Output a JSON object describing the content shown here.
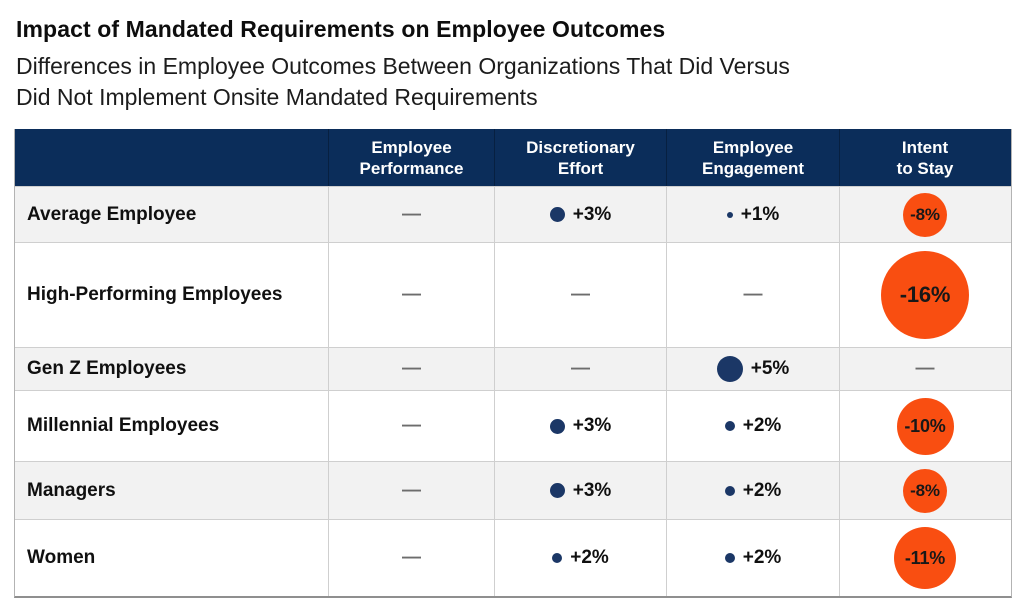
{
  "page": {
    "title": "Impact of Mandated Requirements on Employee Outcomes",
    "subtitle_line1": "Differences in Employee Outcomes Between Organizations That Did Versus",
    "subtitle_line2": "Did Not Implement Onsite Mandated Requirements"
  },
  "colors": {
    "header_bg": "#0b2d5a",
    "navy_bubble": "#1b3766",
    "orange_bubble": "#f94e11",
    "row_alt_bg": "#f2f2f2",
    "dash_gray": "#6d6d6d"
  },
  "table": {
    "dash": "—",
    "header": {
      "columns": [
        {
          "line1": "Employee",
          "line2": "Performance"
        },
        {
          "line1": "Discretionary",
          "line2": "Effort"
        },
        {
          "line1": "Employee",
          "line2": "Engagement"
        },
        {
          "line1": "Intent",
          "line2": "to Stay"
        }
      ]
    },
    "rows": [
      {
        "label": "Average Employee",
        "cells": [
          {
            "type": "dash"
          },
          {
            "type": "bubble",
            "color": "navy",
            "size": 15,
            "label": "+3%"
          },
          {
            "type": "bubble",
            "color": "navy",
            "size": 6,
            "label": "+1%"
          },
          {
            "type": "bubble-inside",
            "color": "orange",
            "size": 44,
            "font": 17,
            "label": "-8%"
          }
        ]
      },
      {
        "label": "High-Performing Employees",
        "cells": [
          {
            "type": "dash"
          },
          {
            "type": "dash"
          },
          {
            "type": "dash"
          },
          {
            "type": "bubble-inside",
            "color": "orange",
            "size": 88,
            "font": 22,
            "label": "-16%"
          }
        ]
      },
      {
        "label": "Gen Z Employees",
        "cells": [
          {
            "type": "dash"
          },
          {
            "type": "dash"
          },
          {
            "type": "bubble",
            "color": "navy",
            "size": 26,
            "label": "+5%"
          },
          {
            "type": "dash"
          }
        ]
      },
      {
        "label": "Millennial Employees",
        "cells": [
          {
            "type": "dash"
          },
          {
            "type": "bubble",
            "color": "navy",
            "size": 15,
            "label": "+3%"
          },
          {
            "type": "bubble",
            "color": "navy",
            "size": 10,
            "label": "+2%"
          },
          {
            "type": "bubble-inside",
            "color": "orange",
            "size": 57,
            "font": 18,
            "label": "-10%"
          }
        ]
      },
      {
        "label": "Managers",
        "cells": [
          {
            "type": "dash"
          },
          {
            "type": "bubble",
            "color": "navy",
            "size": 15,
            "label": "+3%"
          },
          {
            "type": "bubble",
            "color": "navy",
            "size": 10,
            "label": "+2%"
          },
          {
            "type": "bubble-inside",
            "color": "orange",
            "size": 44,
            "font": 17,
            "label": "-8%"
          }
        ]
      },
      {
        "label": "Women",
        "cells": [
          {
            "type": "dash"
          },
          {
            "type": "bubble",
            "color": "navy",
            "size": 10,
            "label": "+2%"
          },
          {
            "type": "bubble",
            "color": "navy",
            "size": 10,
            "label": "+2%"
          },
          {
            "type": "bubble-inside",
            "color": "orange",
            "size": 62,
            "font": 18,
            "label": "-11%"
          }
        ]
      }
    ]
  },
  "chart_data": {
    "type": "table",
    "title": "Impact of Mandated Requirements on Employee Outcomes",
    "subtitle": "Differences in Employee Outcomes Between Organizations That Did Versus Did Not Implement Onsite Mandated Requirements",
    "columns": [
      "Employee Performance",
      "Discretionary Effort",
      "Employee Engagement",
      "Intent to Stay"
    ],
    "rows": [
      {
        "label": "Average Employee",
        "values_pct": [
          null,
          3,
          1,
          -8
        ]
      },
      {
        "label": "High-Performing Employees",
        "values_pct": [
          null,
          null,
          null,
          -16
        ]
      },
      {
        "label": "Gen Z Employees",
        "values_pct": [
          null,
          null,
          5,
          null
        ]
      },
      {
        "label": "Millennial Employees",
        "values_pct": [
          null,
          3,
          2,
          -10
        ]
      },
      {
        "label": "Managers",
        "values_pct": [
          null,
          3,
          2,
          -8
        ]
      },
      {
        "label": "Women",
        "values_pct": [
          null,
          2,
          2,
          -11
        ]
      }
    ],
    "encoding": "bubble area proportional to |value|; navy bubble = positive difference, orange bubble = negative difference, dash = no difference"
  }
}
